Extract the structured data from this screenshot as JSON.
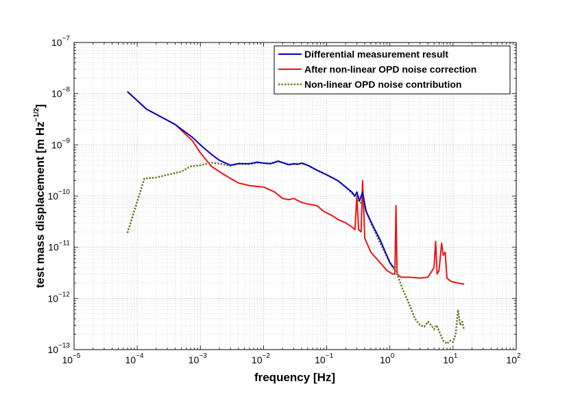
{
  "chart_data": {
    "type": "line",
    "xscale": "log",
    "yscale": "log",
    "xlim": [
      1e-05,
      100
    ],
    "ylim": [
      1e-13,
      1e-07
    ],
    "xlabel": "frequency [Hz]",
    "ylabel_main": "test mass displacement [m Hz",
    "ylabel_sup": "−1/2",
    "ylabel_end": "]",
    "grid": true,
    "legend_position": "top-right",
    "x_ticks": [
      {
        "base": "10",
        "exp": "−5"
      },
      {
        "base": "10",
        "exp": "−4"
      },
      {
        "base": "10",
        "exp": "−3"
      },
      {
        "base": "10",
        "exp": "−2"
      },
      {
        "base": "10",
        "exp": "−1"
      },
      {
        "base": "10",
        "exp": "0"
      },
      {
        "base": "10",
        "exp": "1"
      },
      {
        "base": "10",
        "exp": "2"
      }
    ],
    "y_ticks": [
      {
        "base": "10",
        "exp": "−13"
      },
      {
        "base": "10",
        "exp": "−12"
      },
      {
        "base": "10",
        "exp": "−11"
      },
      {
        "base": "10",
        "exp": "−10"
      },
      {
        "base": "10",
        "exp": "−9"
      },
      {
        "base": "10",
        "exp": "−8"
      },
      {
        "base": "10",
        "exp": "−7"
      }
    ],
    "series": [
      {
        "name": "Differential measurement result",
        "color": "#0000cc",
        "style": "solid",
        "points": [
          [
            7e-05,
            1.1e-08
          ],
          [
            0.00014,
            5e-09
          ],
          [
            0.0004,
            2.5e-09
          ],
          [
            0.00075,
            1.4e-09
          ],
          [
            0.001,
            1e-09
          ],
          [
            0.0015,
            6.5e-10
          ],
          [
            0.002,
            5e-10
          ],
          [
            0.003,
            4e-10
          ],
          [
            0.004,
            4.3e-10
          ],
          [
            0.006,
            4.3e-10
          ],
          [
            0.008,
            4.6e-10
          ],
          [
            0.01,
            4.4e-10
          ],
          [
            0.013,
            4.3e-10
          ],
          [
            0.017,
            4.8e-10
          ],
          [
            0.02,
            4.5e-10
          ],
          [
            0.025,
            4.1e-10
          ],
          [
            0.03,
            4.3e-10
          ],
          [
            0.035,
            4.2e-10
          ],
          [
            0.04,
            4.4e-10
          ],
          [
            0.05,
            4e-10
          ],
          [
            0.07,
            3.2e-10
          ],
          [
            0.1,
            2.6e-10
          ],
          [
            0.15,
            2e-10
          ],
          [
            0.2,
            1.5e-10
          ],
          [
            0.25,
            1.2e-10
          ],
          [
            0.28,
            1e-10
          ],
          [
            0.3,
            1.2e-10
          ],
          [
            0.33,
            8e-11
          ],
          [
            0.37,
            1.2e-10
          ],
          [
            0.42,
            5e-11
          ],
          [
            0.55,
            2.5e-11
          ],
          [
            0.7,
            1.4e-11
          ],
          [
            0.85,
            8e-12
          ],
          [
            1.0,
            5e-12
          ],
          [
            1.15,
            4e-12
          ]
        ]
      },
      {
        "name": "After non-linear OPD noise correction",
        "color": "#ee1111",
        "style": "solid",
        "points": [
          [
            7e-05,
            1.1e-08
          ],
          [
            0.00014,
            5e-09
          ],
          [
            0.0004,
            2.5e-09
          ],
          [
            0.00075,
            1.2e-09
          ],
          [
            0.001,
            7e-10
          ],
          [
            0.0015,
            3.8e-10
          ],
          [
            0.002,
            3e-10
          ],
          [
            0.003,
            2.2e-10
          ],
          [
            0.004,
            1.8e-10
          ],
          [
            0.006,
            1.6e-10
          ],
          [
            0.01,
            1.5e-10
          ],
          [
            0.015,
            1.2e-10
          ],
          [
            0.02,
            9e-11
          ],
          [
            0.025,
            8.5e-11
          ],
          [
            0.03,
            9e-11
          ],
          [
            0.04,
            7.5e-11
          ],
          [
            0.05,
            7e-11
          ],
          [
            0.07,
            6.5e-11
          ],
          [
            0.09,
            5e-11
          ],
          [
            0.12,
            4.2e-11
          ],
          [
            0.15,
            3.5e-11
          ],
          [
            0.2,
            3e-11
          ],
          [
            0.25,
            2.5e-11
          ],
          [
            0.28,
            2.2e-11
          ],
          [
            0.3,
            1e-10
          ],
          [
            0.32,
            2.2e-11
          ],
          [
            0.35,
            2e-11
          ],
          [
            0.37,
            2e-10
          ],
          [
            0.4,
            1.5e-11
          ],
          [
            0.5,
            8e-12
          ],
          [
            0.7,
            5e-12
          ],
          [
            0.9,
            3.5e-12
          ],
          [
            1.1,
            3e-12
          ],
          [
            1.2,
            3e-12
          ],
          [
            1.25,
            6.5e-11
          ],
          [
            1.3,
            3e-12
          ],
          [
            1.5,
            2.6e-12
          ],
          [
            2,
            2.6e-12
          ],
          [
            3,
            2.5e-12
          ],
          [
            4,
            2.6e-12
          ],
          [
            5,
            4e-12
          ],
          [
            5.3,
            1.3e-11
          ],
          [
            5.6,
            3e-12
          ],
          [
            6,
            3.5e-12
          ],
          [
            6.6,
            1.2e-11
          ],
          [
            7,
            7e-12
          ],
          [
            7.5,
            8e-12
          ],
          [
            8,
            2.5e-12
          ],
          [
            9,
            2.2e-12
          ],
          [
            10,
            2.1e-12
          ],
          [
            12,
            2e-12
          ],
          [
            15,
            1.9e-12
          ]
        ]
      },
      {
        "name": "Non-linear OPD noise contribution",
        "color": "#6b7c2a",
        "style": "dotted",
        "points": [
          [
            7e-05,
            1.9e-11
          ],
          [
            0.00013,
            2.2e-10
          ],
          [
            0.0002,
            2.3e-10
          ],
          [
            0.0003,
            2.6e-10
          ],
          [
            0.0005,
            3e-10
          ],
          [
            0.0007,
            3.8e-10
          ],
          [
            0.001,
            4e-10
          ],
          [
            0.0015,
            4.5e-10
          ],
          [
            0.002,
            4.3e-10
          ],
          [
            0.003,
            3.9e-10
          ],
          [
            0.004,
            4.3e-10
          ],
          [
            0.006,
            4.2e-10
          ],
          [
            0.008,
            4.5e-10
          ],
          [
            0.01,
            4.4e-10
          ],
          [
            0.013,
            4.3e-10
          ],
          [
            0.017,
            4.8e-10
          ],
          [
            0.02,
            4.5e-10
          ],
          [
            0.025,
            4.1e-10
          ],
          [
            0.03,
            4.2e-10
          ],
          [
            0.035,
            4.2e-10
          ],
          [
            0.04,
            4.4e-10
          ],
          [
            0.05,
            4e-10
          ],
          [
            0.07,
            3.2e-10
          ],
          [
            0.1,
            2.6e-10
          ],
          [
            0.15,
            2e-10
          ],
          [
            0.2,
            1.5e-10
          ],
          [
            0.3,
            9e-11
          ],
          [
            0.4,
            6e-11
          ],
          [
            0.5,
            3e-11
          ],
          [
            0.7,
            1.2e-11
          ],
          [
            1.0,
            5e-12
          ],
          [
            1.3,
            3e-12
          ],
          [
            1.6,
            1.5e-12
          ],
          [
            2,
            8e-13
          ],
          [
            2.5,
            4e-13
          ],
          [
            3,
            3e-13
          ],
          [
            3.5,
            2.8e-13
          ],
          [
            4,
            3.5e-13
          ],
          [
            4.5,
            3e-13
          ],
          [
            5,
            2.5e-13
          ],
          [
            5.5,
            3e-13
          ],
          [
            6,
            2.3e-13
          ],
          [
            7,
            1.5e-13
          ],
          [
            8,
            1.3e-13
          ],
          [
            9,
            1.5e-13
          ],
          [
            10,
            1.4e-13
          ],
          [
            11,
            2e-13
          ],
          [
            12,
            6e-13
          ],
          [
            13,
            3e-13
          ],
          [
            14,
            3.5e-13
          ],
          [
            15,
            2.4e-13
          ]
        ]
      }
    ]
  }
}
